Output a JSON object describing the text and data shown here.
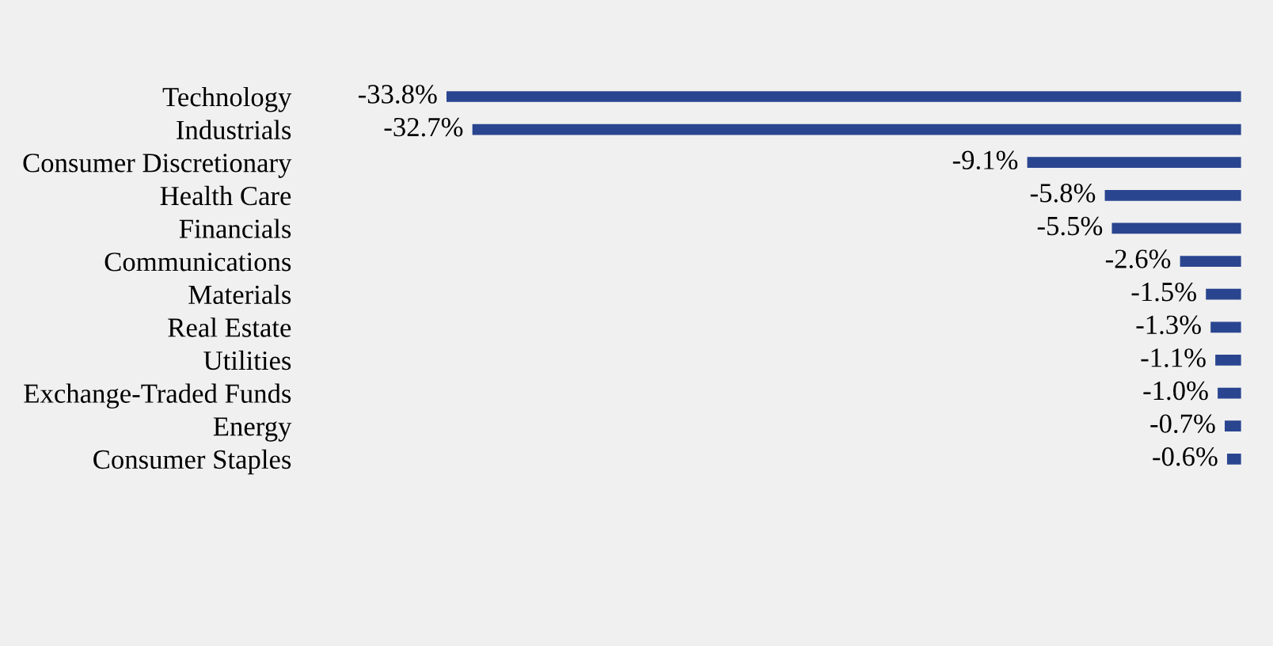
{
  "chart_data": {
    "type": "bar",
    "orientation": "horizontal",
    "categories": [
      "Technology",
      "Industrials",
      "Consumer Discretionary",
      "Health Care",
      "Financials",
      "Communications",
      "Materials",
      "Real Estate",
      "Utilities",
      "Exchange-Traded Funds",
      "Energy",
      "Consumer Staples"
    ],
    "values": [
      -33.8,
      -32.7,
      -9.1,
      -5.8,
      -5.5,
      -2.6,
      -1.5,
      -1.3,
      -1.1,
      -1.0,
      -0.7,
      -0.6
    ],
    "value_labels": [
      "-33.8%",
      "-32.7%",
      "-9.1%",
      "-5.8%",
      "-5.5%",
      "-2.6%",
      "-1.5%",
      "-1.3%",
      "-1.1%",
      "-1.0%",
      "-0.7%",
      "-0.6%"
    ],
    "color": "#2a4590",
    "tick_labels": "y",
    "grid": false,
    "legend": false
  }
}
